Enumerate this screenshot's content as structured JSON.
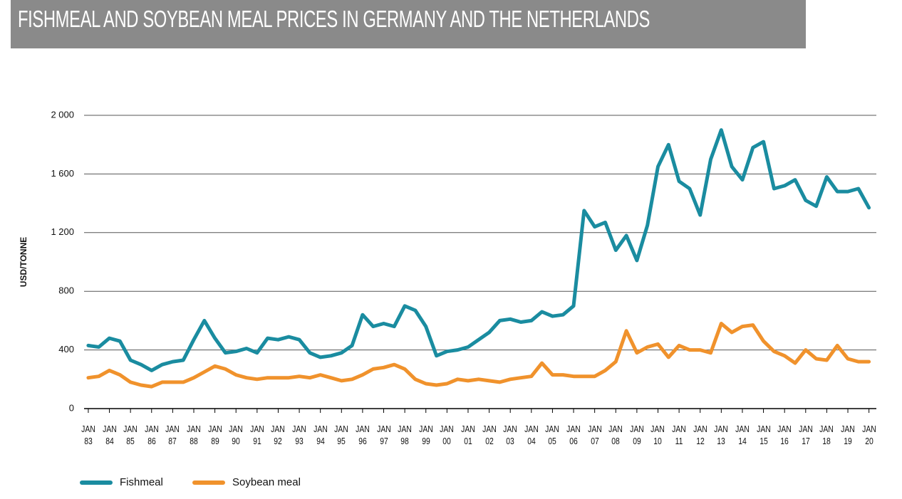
{
  "chart_data": {
    "type": "line",
    "title": "FISHMEAL AND SOYBEAN MEAL PRICES IN GERMANY AND THE NETHERLANDS",
    "y_label": "USD/TONNE",
    "x": [
      1983,
      1983.5,
      1984,
      1984.5,
      1985,
      1985.5,
      1986,
      1986.5,
      1987,
      1987.5,
      1988,
      1988.5,
      1989,
      1989.5,
      1990,
      1990.5,
      1991,
      1991.5,
      1992,
      1992.5,
      1993,
      1993.5,
      1994,
      1994.5,
      1995,
      1995.5,
      1996,
      1996.5,
      1997,
      1997.5,
      1998,
      1998.5,
      1999,
      1999.5,
      2000,
      2000.5,
      2001,
      2001.5,
      2002,
      2002.5,
      2003,
      2003.5,
      2004,
      2004.5,
      2005,
      2005.5,
      2006,
      2006.5,
      2007,
      2007.5,
      2008,
      2008.5,
      2009,
      2009.5,
      2010,
      2010.5,
      2011,
      2011.5,
      2012,
      2012.5,
      2013,
      2013.5,
      2014,
      2014.5,
      2015,
      2015.5,
      2016,
      2016.5,
      2017,
      2017.5,
      2018,
      2018.5,
      2019,
      2019.5,
      2020
    ],
    "series": [
      {
        "name": "Fishmeal",
        "color": "#1a8ca0",
        "values": [
          430,
          420,
          480,
          460,
          330,
          300,
          260,
          300,
          320,
          330,
          470,
          600,
          480,
          380,
          390,
          410,
          380,
          480,
          470,
          490,
          470,
          380,
          350,
          360,
          380,
          430,
          640,
          560,
          580,
          560,
          700,
          670,
          560,
          360,
          390,
          400,
          420,
          470,
          520,
          600,
          610,
          590,
          600,
          660,
          630,
          640,
          700,
          1350,
          1240,
          1270,
          1080,
          1180,
          1010,
          1250,
          1650,
          1800,
          1550,
          1500,
          1320,
          1700,
          1900,
          1650,
          1560,
          1780,
          1820,
          1500,
          1520,
          1560,
          1420,
          1380,
          1580,
          1480,
          1480,
          1500,
          1370
        ]
      },
      {
        "name": "Soybean meal",
        "color": "#f0922c",
        "values": [
          210,
          220,
          260,
          230,
          180,
          160,
          150,
          180,
          180,
          180,
          210,
          250,
          290,
          270,
          230,
          210,
          200,
          210,
          210,
          210,
          220,
          210,
          230,
          210,
          190,
          200,
          230,
          270,
          280,
          300,
          270,
          200,
          170,
          160,
          170,
          200,
          190,
          200,
          190,
          180,
          200,
          210,
          220,
          310,
          230,
          230,
          220,
          220,
          220,
          260,
          320,
          530,
          380,
          420,
          440,
          350,
          430,
          400,
          400,
          380,
          580,
          520,
          560,
          570,
          460,
          390,
          360,
          310,
          400,
          340,
          330,
          430,
          340,
          320,
          320
        ]
      }
    ],
    "xlim": [
      1982.8,
      2020.35
    ],
    "xticks": [
      {
        "value": 1983,
        "label": "JAN 83"
      },
      {
        "value": 1984,
        "label": "JAN 84"
      },
      {
        "value": 1985,
        "label": "JAN 85"
      },
      {
        "value": 1986,
        "label": "JAN 86"
      },
      {
        "value": 1987,
        "label": "JAN 87"
      },
      {
        "value": 1988,
        "label": "JAN 88"
      },
      {
        "value": 1989,
        "label": "JAN 89"
      },
      {
        "value": 1990,
        "label": "JAN 90"
      },
      {
        "value": 1991,
        "label": "JAN 91"
      },
      {
        "value": 1992,
        "label": "JAN 92"
      },
      {
        "value": 1993,
        "label": "JAN 93"
      },
      {
        "value": 1994,
        "label": "JAN 94"
      },
      {
        "value": 1995,
        "label": "JAN 95"
      },
      {
        "value": 1996,
        "label": "JAN 96"
      },
      {
        "value": 1997,
        "label": "JAN 97"
      },
      {
        "value": 1998,
        "label": "JAN 98"
      },
      {
        "value": 1999,
        "label": "JAN 99"
      },
      {
        "value": 2000,
        "label": "JAN 00"
      },
      {
        "value": 2001,
        "label": "JAN 01"
      },
      {
        "value": 2002,
        "label": "JAN 02"
      },
      {
        "value": 2003,
        "label": "JAN 03"
      },
      {
        "value": 2004,
        "label": "JAN 04"
      },
      {
        "value": 2005,
        "label": "JAN 05"
      },
      {
        "value": 2006,
        "label": "JAN 06"
      },
      {
        "value": 2007,
        "label": "JAN 07"
      },
      {
        "value": 2008,
        "label": "JAN 08"
      },
      {
        "value": 2009,
        "label": "JAN 09"
      },
      {
        "value": 2010,
        "label": "JAN 10"
      },
      {
        "value": 2011,
        "label": "JAN 11"
      },
      {
        "value": 2012,
        "label": "JAN 12"
      },
      {
        "value": 2013,
        "label": "JAN 13"
      },
      {
        "value": 2014,
        "label": "JAN 14"
      },
      {
        "value": 2015,
        "label": "JAN 15"
      },
      {
        "value": 2016,
        "label": "JAN 16"
      },
      {
        "value": 2017,
        "label": "JAN 17"
      },
      {
        "value": 2018,
        "label": "JAN 18"
      },
      {
        "value": 2019,
        "label": "JAN 19"
      },
      {
        "value": 2020,
        "label": "JAN 20"
      }
    ],
    "ylim": [
      0,
      2000
    ],
    "yticks": [
      0,
      400,
      800,
      {
        "value": 1200,
        "label": "1 200"
      },
      {
        "value": 1600,
        "label": "1 600"
      },
      {
        "value": 2000,
        "label": "2 000"
      }
    ],
    "grid": true,
    "legend": "bottom"
  }
}
